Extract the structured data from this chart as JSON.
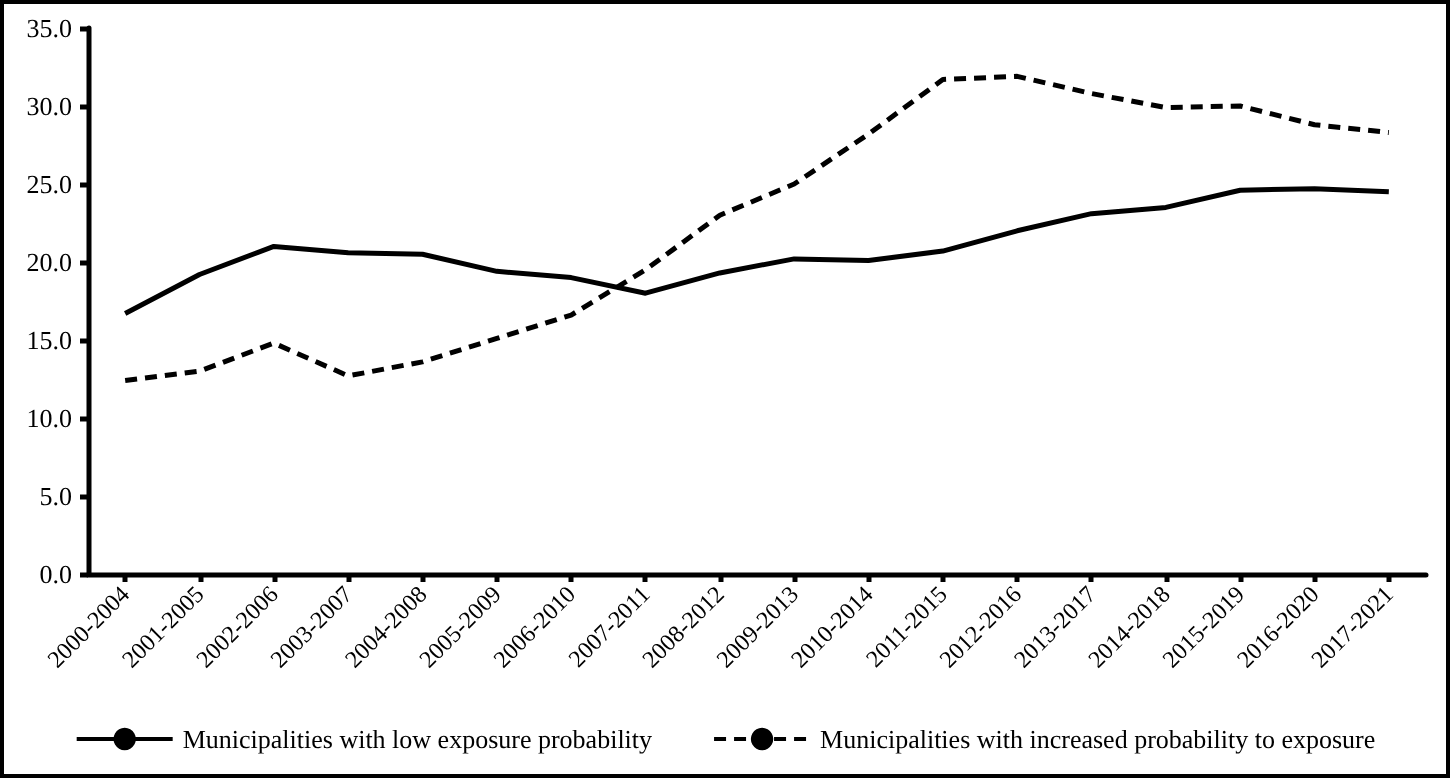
{
  "chart_data": {
    "type": "line",
    "categories": [
      "2000-2004",
      "2001-2005",
      "2002-2006",
      "2003-2007",
      "2004-2008",
      "2005-2009",
      "2006-2010",
      "2007-2011",
      "2008-2012",
      "2009-2013",
      "2010-2014",
      "2011-2015",
      "2012-2016",
      "2013-2017",
      "2014-2018",
      "2015-2019",
      "2016-2020",
      "2017-2021"
    ],
    "series": [
      {
        "name": "Municipalities with low exposure probability",
        "color": "#000000",
        "line_style": "solid",
        "values": [
          16.7,
          19.2,
          21.0,
          20.6,
          20.5,
          19.4,
          19.0,
          18.0,
          19.3,
          20.2,
          20.1,
          20.7,
          22.0,
          23.1,
          23.5,
          24.6,
          24.7,
          24.5
        ]
      },
      {
        "name": "Municipalities with increased probability to exposure",
        "color": "#000000",
        "line_style": "dashed",
        "values": [
          12.4,
          13.0,
          14.8,
          12.7,
          13.6,
          15.1,
          16.6,
          19.5,
          23.0,
          25.0,
          28.2,
          31.7,
          31.9,
          30.8,
          29.9,
          30.0,
          28.8,
          28.3
        ]
      }
    ],
    "ylim": [
      0,
      35
    ],
    "yticks": [
      {
        "value": 0,
        "label": "0.0"
      },
      {
        "value": 5,
        "label": "5.0"
      },
      {
        "value": 10,
        "label": "10.0"
      },
      {
        "value": 15,
        "label": "15.0"
      },
      {
        "value": 20,
        "label": "20.0"
      },
      {
        "value": 25,
        "label": "25.0"
      },
      {
        "value": 30,
        "label": "30.0"
      },
      {
        "value": 35,
        "label": "35.0"
      }
    ],
    "grid": false,
    "legend": "bottom",
    "marker": "none"
  }
}
